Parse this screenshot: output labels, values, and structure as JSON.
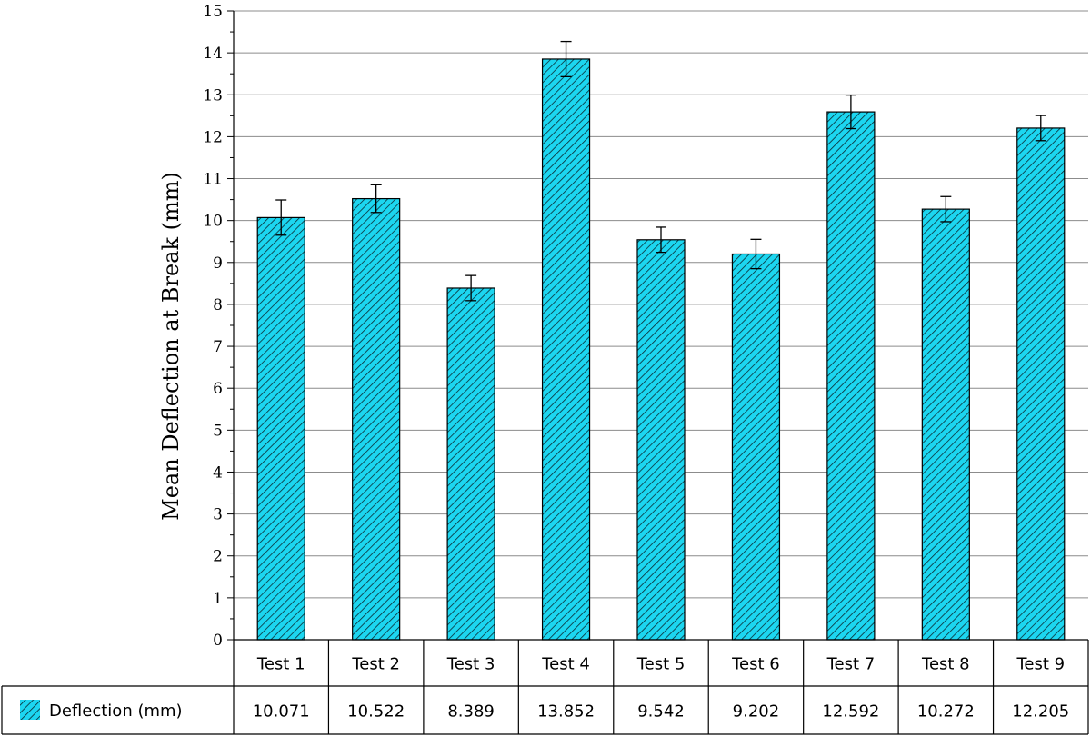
{
  "chart_data": {
    "type": "bar",
    "ylabel": "Mean Deflection at Break (mm)",
    "ylim": [
      0,
      15
    ],
    "yticks": [
      0,
      1,
      2,
      3,
      4,
      5,
      6,
      7,
      8,
      9,
      10,
      11,
      12,
      13,
      14,
      15
    ],
    "grid": true,
    "categories": [
      "Test 1",
      "Test 2",
      "Test 3",
      "Test 4",
      "Test 5",
      "Test 6",
      "Test 7",
      "Test 8",
      "Test 9"
    ],
    "series": [
      {
        "name": "Deflection (mm)",
        "values": [
          10.071,
          10.522,
          8.389,
          13.852,
          9.542,
          9.202,
          12.592,
          10.272,
          12.205
        ],
        "labels": [
          "10.071",
          "10.522",
          "8.389",
          "13.852",
          "9.542",
          "9.202",
          "12.592",
          "10.272",
          "12.205"
        ],
        "error": [
          0.42,
          0.33,
          0.3,
          0.42,
          0.3,
          0.35,
          0.4,
          0.3,
          0.3
        ],
        "color": "#1cd6f0",
        "hatch": "diagonal"
      }
    ],
    "legend_placement": "data-table-left"
  }
}
